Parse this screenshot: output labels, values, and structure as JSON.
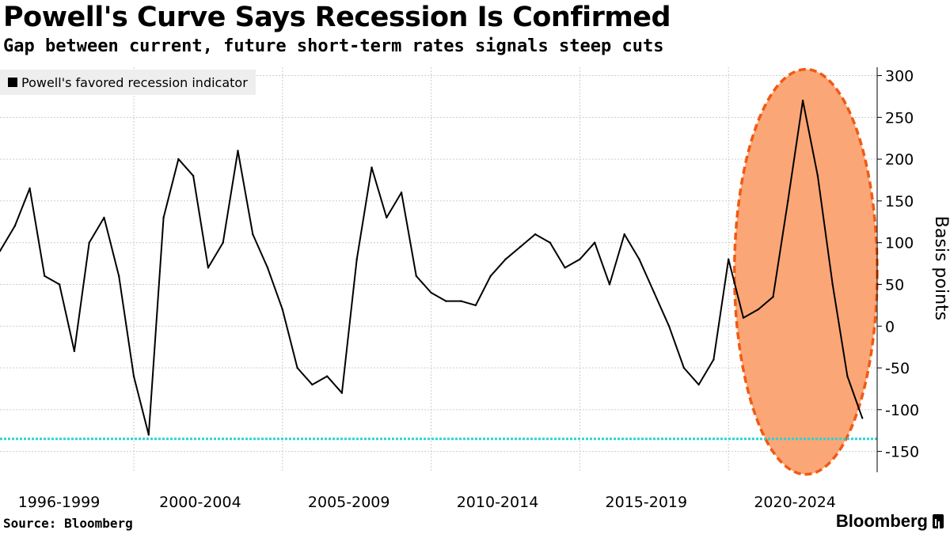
{
  "chart_data": {
    "type": "line",
    "title": "Powell's Curve Says Recession Is Confirmed",
    "subtitle": "Gap between current, future short-term rates signals steep cuts",
    "ylabel": "Basis points",
    "ylim": [
      -175,
      310
    ],
    "yticks": [
      300,
      250,
      200,
      150,
      100,
      50,
      0,
      -50,
      -100,
      -150
    ],
    "x_labels": [
      "1996-1999",
      "2000-2004",
      "2005-2009",
      "2010-2014",
      "2015-2019",
      "2020-2024"
    ],
    "grid": true,
    "legend_position": "top-left",
    "series": [
      {
        "name": "Powell's favored recession indicator",
        "color": "#000000",
        "x": [
          1995.5,
          1996.0,
          1996.5,
          1997.0,
          1997.5,
          1998.0,
          1998.5,
          1999.0,
          1999.5,
          2000.0,
          2000.5,
          2001.0,
          2001.5,
          2002.0,
          2002.5,
          2003.0,
          2003.5,
          2004.0,
          2004.5,
          2005.0,
          2005.5,
          2006.0,
          2006.5,
          2007.0,
          2007.5,
          2008.0,
          2008.5,
          2009.0,
          2009.5,
          2010.0,
          2010.5,
          2011.0,
          2011.5,
          2012.0,
          2012.5,
          2013.0,
          2013.5,
          2014.0,
          2014.5,
          2015.0,
          2015.5,
          2016.0,
          2016.5,
          2017.0,
          2017.5,
          2018.0,
          2018.5,
          2019.0,
          2019.5,
          2020.0,
          2020.5,
          2021.0,
          2021.5,
          2022.0,
          2022.5,
          2023.0,
          2023.5,
          2024.0,
          2024.5
        ],
        "y": [
          90,
          120,
          165,
          60,
          50,
          -30,
          100,
          130,
          60,
          -60,
          -130,
          130,
          200,
          180,
          70,
          100,
          210,
          110,
          70,
          20,
          -50,
          -70,
          -60,
          -80,
          80,
          190,
          130,
          160,
          60,
          40,
          30,
          30,
          25,
          60,
          80,
          95,
          110,
          100,
          70,
          80,
          100,
          50,
          110,
          80,
          40,
          0,
          -50,
          -70,
          -40,
          80,
          10,
          20,
          35,
          150,
          270,
          180,
          50,
          -60,
          -110
        ]
      }
    ],
    "reference_line": {
      "value": -135,
      "color": "#2ad4d4"
    },
    "highlight_color": "#fba676",
    "highlight_border_color": "#f05a14",
    "source": "Source: Bloomberg",
    "brand": "Bloomberg"
  }
}
